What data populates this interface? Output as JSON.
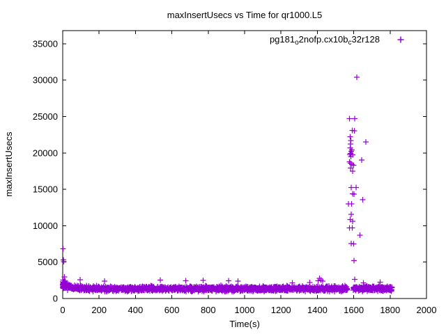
{
  "colors": {
    "marker": "#9400d3",
    "text": "#000000",
    "border": "#000000",
    "background": "#ffffff"
  },
  "chart_data": {
    "type": "scatter",
    "title": "maxInsertUsecs vs Time for qr1000.L5",
    "xlabel": "Time(s)",
    "ylabel": "maxInsertUsecs",
    "xlim": [
      0,
      2000
    ],
    "ylim": [
      0,
      36800
    ],
    "x_ticks": [
      0,
      200,
      400,
      600,
      800,
      1000,
      1200,
      1400,
      1600,
      1800,
      2000
    ],
    "y_ticks": [
      0,
      5000,
      10000,
      15000,
      20000,
      25000,
      30000,
      35000
    ],
    "grid": false,
    "legend_position": "top-right-inside",
    "series": [
      {
        "name": "pg181_o2nofp.cx10b_c32r128",
        "name_parts": [
          {
            "text": "pg181",
            "sub": false
          },
          {
            "text": "o",
            "sub": true
          },
          {
            "text": "2nofp.cx10b",
            "sub": false
          },
          {
            "text": "c",
            "sub": true
          },
          {
            "text": "32r128",
            "sub": false
          }
        ],
        "marker": "plus",
        "color": "#9400d3",
        "baseline": {
          "description": "dense per-second samples forming a band, with a gap before the spike cluster",
          "segments": [
            [
              0,
              1565
            ],
            [
              1597,
              1810
            ]
          ],
          "y_center": 1350,
          "y_spread": 170,
          "y_min": 950,
          "y_max": 2050,
          "startup_decay": {
            "amplitude": 800,
            "tau": 32,
            "range": 200
          },
          "zero_cluster": {
            "count": 20,
            "x_max": 7,
            "y_min": 1300,
            "y_max": 2560
          },
          "seed": 7
        },
        "outliers": [
          [
            2,
            6820
          ],
          [
            3,
            5320
          ],
          [
            6,
            5080
          ],
          [
            10,
            2950
          ],
          [
            96,
            2600
          ],
          [
            230,
            2400
          ],
          [
            536,
            2540
          ],
          [
            676,
            2420
          ],
          [
            772,
            2480
          ],
          [
            912,
            2430
          ],
          [
            963,
            2400
          ],
          [
            1263,
            2150
          ],
          [
            1359,
            2200
          ],
          [
            1404,
            2460
          ],
          [
            1411,
            2780
          ],
          [
            1419,
            2550
          ],
          [
            1430,
            2390
          ],
          [
            1616,
            30400
          ],
          [
            1577,
            24700
          ],
          [
            1606,
            24700
          ],
          [
            1591,
            23100
          ],
          [
            1603,
            23050
          ],
          [
            1581,
            22200
          ],
          [
            1585,
            21700
          ],
          [
            1583,
            21200
          ],
          [
            1666,
            21500
          ],
          [
            1580,
            20700
          ],
          [
            1590,
            20400
          ],
          [
            1586,
            20200
          ],
          [
            1582,
            19950
          ],
          [
            1578,
            19800
          ],
          [
            1593,
            19750
          ],
          [
            1585,
            19500
          ],
          [
            1643,
            19000
          ],
          [
            1576,
            18800
          ],
          [
            1583,
            18600
          ],
          [
            1590,
            18400
          ],
          [
            1600,
            18300
          ],
          [
            1583,
            17900
          ],
          [
            1594,
            17500
          ],
          [
            1587,
            15250
          ],
          [
            1613,
            15250
          ],
          [
            1594,
            14400
          ],
          [
            1602,
            14350
          ],
          [
            1650,
            13550
          ],
          [
            1570,
            13000
          ],
          [
            1589,
            13000
          ],
          [
            1586,
            11550
          ],
          [
            1581,
            10850
          ],
          [
            1593,
            10600
          ],
          [
            1577,
            9700
          ],
          [
            1591,
            9700
          ],
          [
            1634,
            8700
          ],
          [
            1586,
            7550
          ],
          [
            1600,
            7500
          ],
          [
            1602,
            5230
          ],
          [
            1605,
            2610
          ],
          [
            1653,
            2130
          ],
          [
            1745,
            2230
          ]
        ]
      }
    ]
  }
}
